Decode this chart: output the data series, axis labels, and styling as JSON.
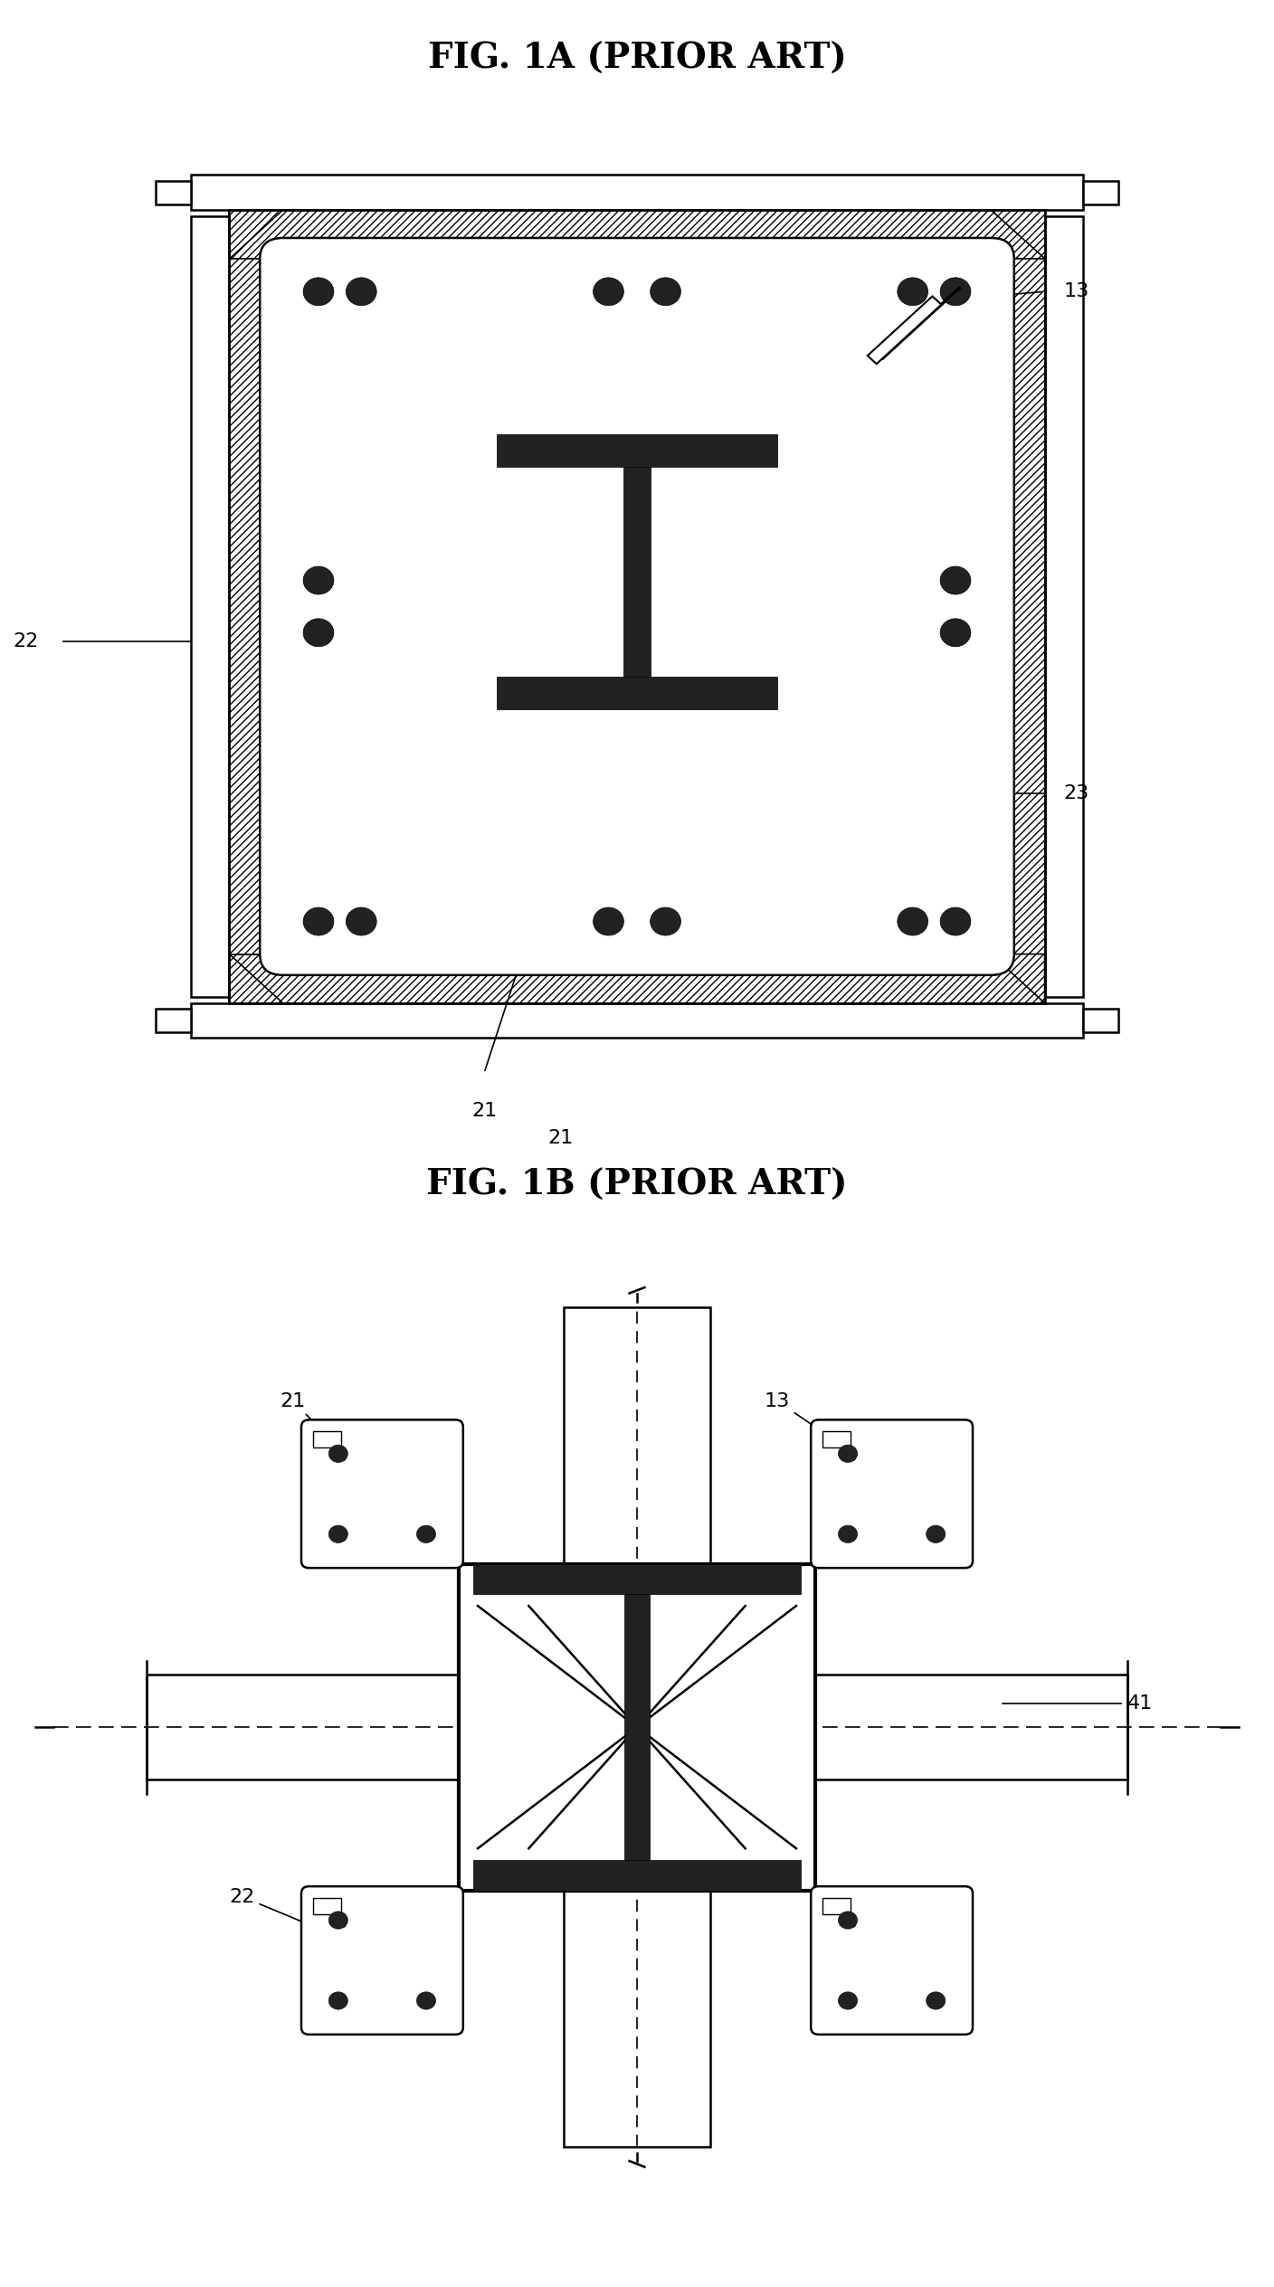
{
  "title1": "FIG. 1A (PRIOR ART)",
  "title2": "FIG. 1B (PRIOR ART)",
  "bg_color": "#ffffff",
  "line_color": "#000000",
  "fill_dark": "#222222",
  "label_fontsize": 16,
  "title_fontsize": 28
}
